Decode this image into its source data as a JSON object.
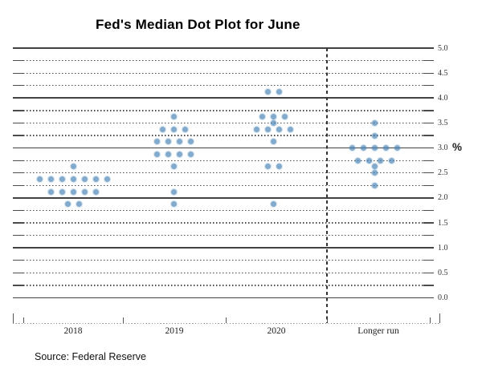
{
  "title": "Fed's Median Dot Plot for June",
  "source_note": "Source: Federal Reserve",
  "chart_data": {
    "type": "scatter",
    "title": "Fed's Median Dot Plot for June",
    "ylabel": "%",
    "ylim": [
      0.0,
      5.0
    ],
    "y_gridline_step": 0.25,
    "ytick_labels": [
      "0.0",
      "0.5",
      "1.0",
      "1.5",
      "2.0",
      "2.5",
      "3.0",
      "3.5",
      "4.0",
      "4.5",
      "5.0"
    ],
    "grid": "solid lines at whole percents, dotted lines at quarter percents",
    "legend_position": "none",
    "dot_color": "#84a7cf",
    "categories": [
      "2018",
      "2019",
      "2020",
      "Longer run"
    ],
    "separator_between": [
      "2020",
      "Longer run"
    ],
    "series": [
      {
        "name": "2018",
        "dots": [
          {
            "rate": 2.625,
            "count": 1
          },
          {
            "rate": 2.375,
            "count": 7
          },
          {
            "rate": 2.125,
            "count": 5
          },
          {
            "rate": 1.875,
            "count": 2
          }
        ]
      },
      {
        "name": "2019",
        "dots": [
          {
            "rate": 3.625,
            "count": 1
          },
          {
            "rate": 3.375,
            "count": 3
          },
          {
            "rate": 3.125,
            "count": 4
          },
          {
            "rate": 2.875,
            "count": 4
          },
          {
            "rate": 2.625,
            "count": 1
          },
          {
            "rate": 2.125,
            "count": 1
          },
          {
            "rate": 1.875,
            "count": 1
          }
        ]
      },
      {
        "name": "2020",
        "dots": [
          {
            "rate": 4.125,
            "count": 2
          },
          {
            "rate": 3.625,
            "count": 3
          },
          {
            "rate": 3.5,
            "count": 1
          },
          {
            "rate": 3.375,
            "count": 4
          },
          {
            "rate": 3.125,
            "count": 1
          },
          {
            "rate": 2.625,
            "count": 2
          },
          {
            "rate": 1.875,
            "count": 1
          }
        ]
      },
      {
        "name": "Longer run",
        "dots": [
          {
            "rate": 3.5,
            "count": 1
          },
          {
            "rate": 3.25,
            "count": 1
          },
          {
            "rate": 3.0,
            "count": 5
          },
          {
            "rate": 2.75,
            "count": 4
          },
          {
            "rate": 2.625,
            "count": 1
          },
          {
            "rate": 2.5,
            "count": 1
          },
          {
            "rate": 2.25,
            "count": 1
          }
        ]
      }
    ]
  }
}
